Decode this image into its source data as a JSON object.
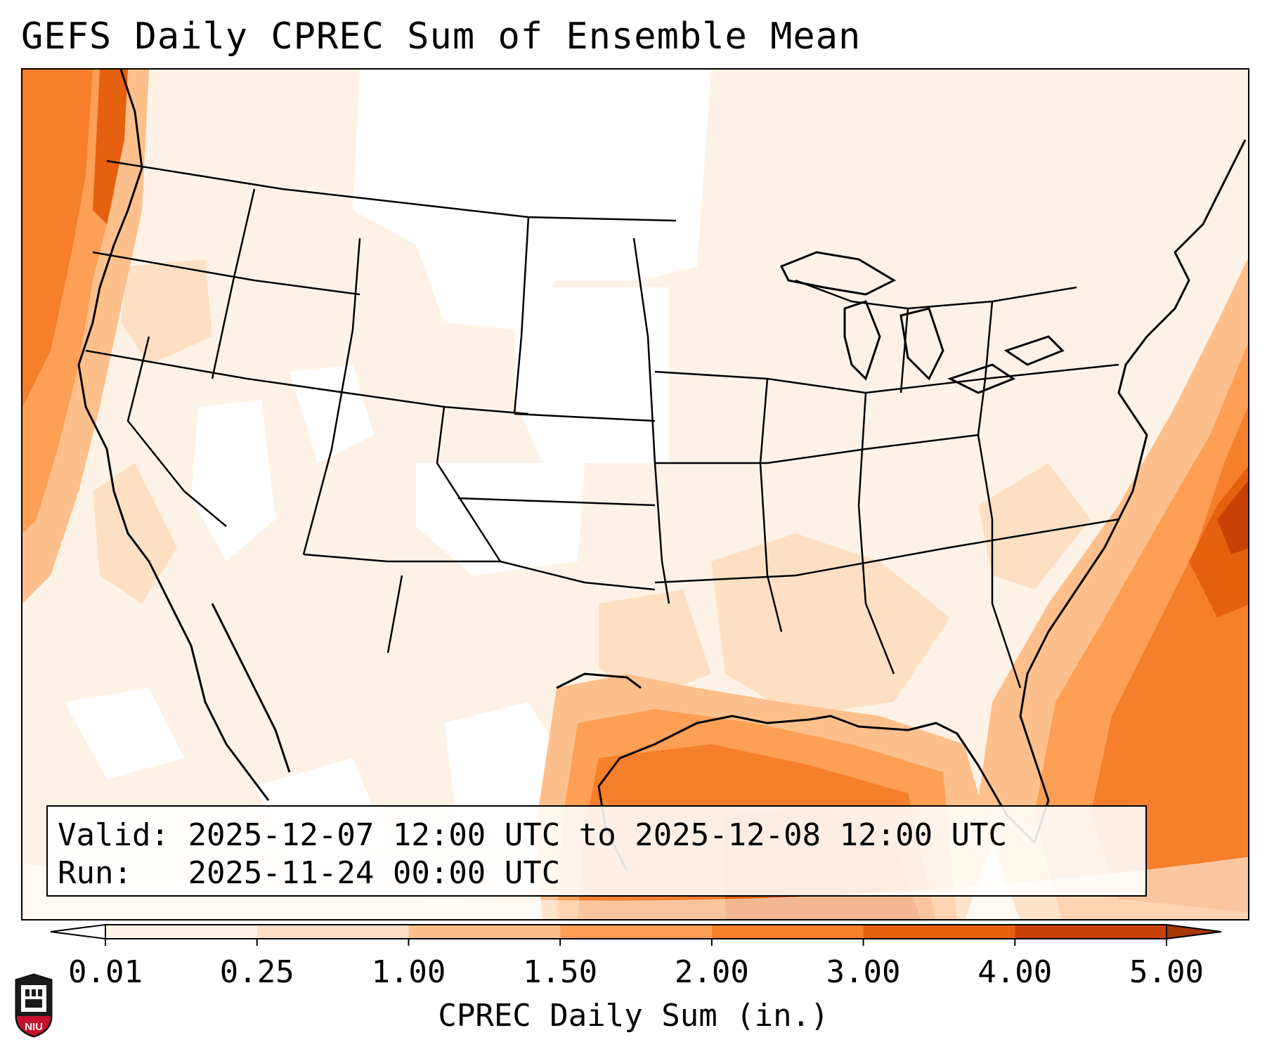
{
  "title": "GEFS Daily CPREC Sum of Ensemble Mean",
  "info": {
    "valid_label": "Valid:",
    "valid_value": "2025-12-07 12:00 UTC to 2025-12-08 12:00 UTC",
    "run_label": "Run:",
    "run_value": "2025-11-24 00:00 UTC"
  },
  "colorbar": {
    "label": "CPREC Daily Sum (in.)",
    "ticks": [
      "0.01",
      "0.25",
      "1.00",
      "1.50",
      "2.00",
      "3.00",
      "4.00",
      "5.00"
    ],
    "colors": [
      "#fef2e6",
      "#fde0c4",
      "#fdc08c",
      "#fd9f55",
      "#f67f2b",
      "#e5600f",
      "#c84104"
    ],
    "extend_under_color": "#ffffff",
    "extend_over_color": "#a63603"
  },
  "map": {
    "region": "Contiguous United States",
    "borders": [
      "coastlines",
      "state borders",
      "country borders"
    ],
    "heavy_precip_areas": [
      "Pacific Ocean off Washington/Oregon/California",
      "Gulf of Mexico",
      "Atlantic Ocean off Southeast US"
    ]
  },
  "logo": {
    "text": "NIU",
    "color": "#c8102e"
  }
}
